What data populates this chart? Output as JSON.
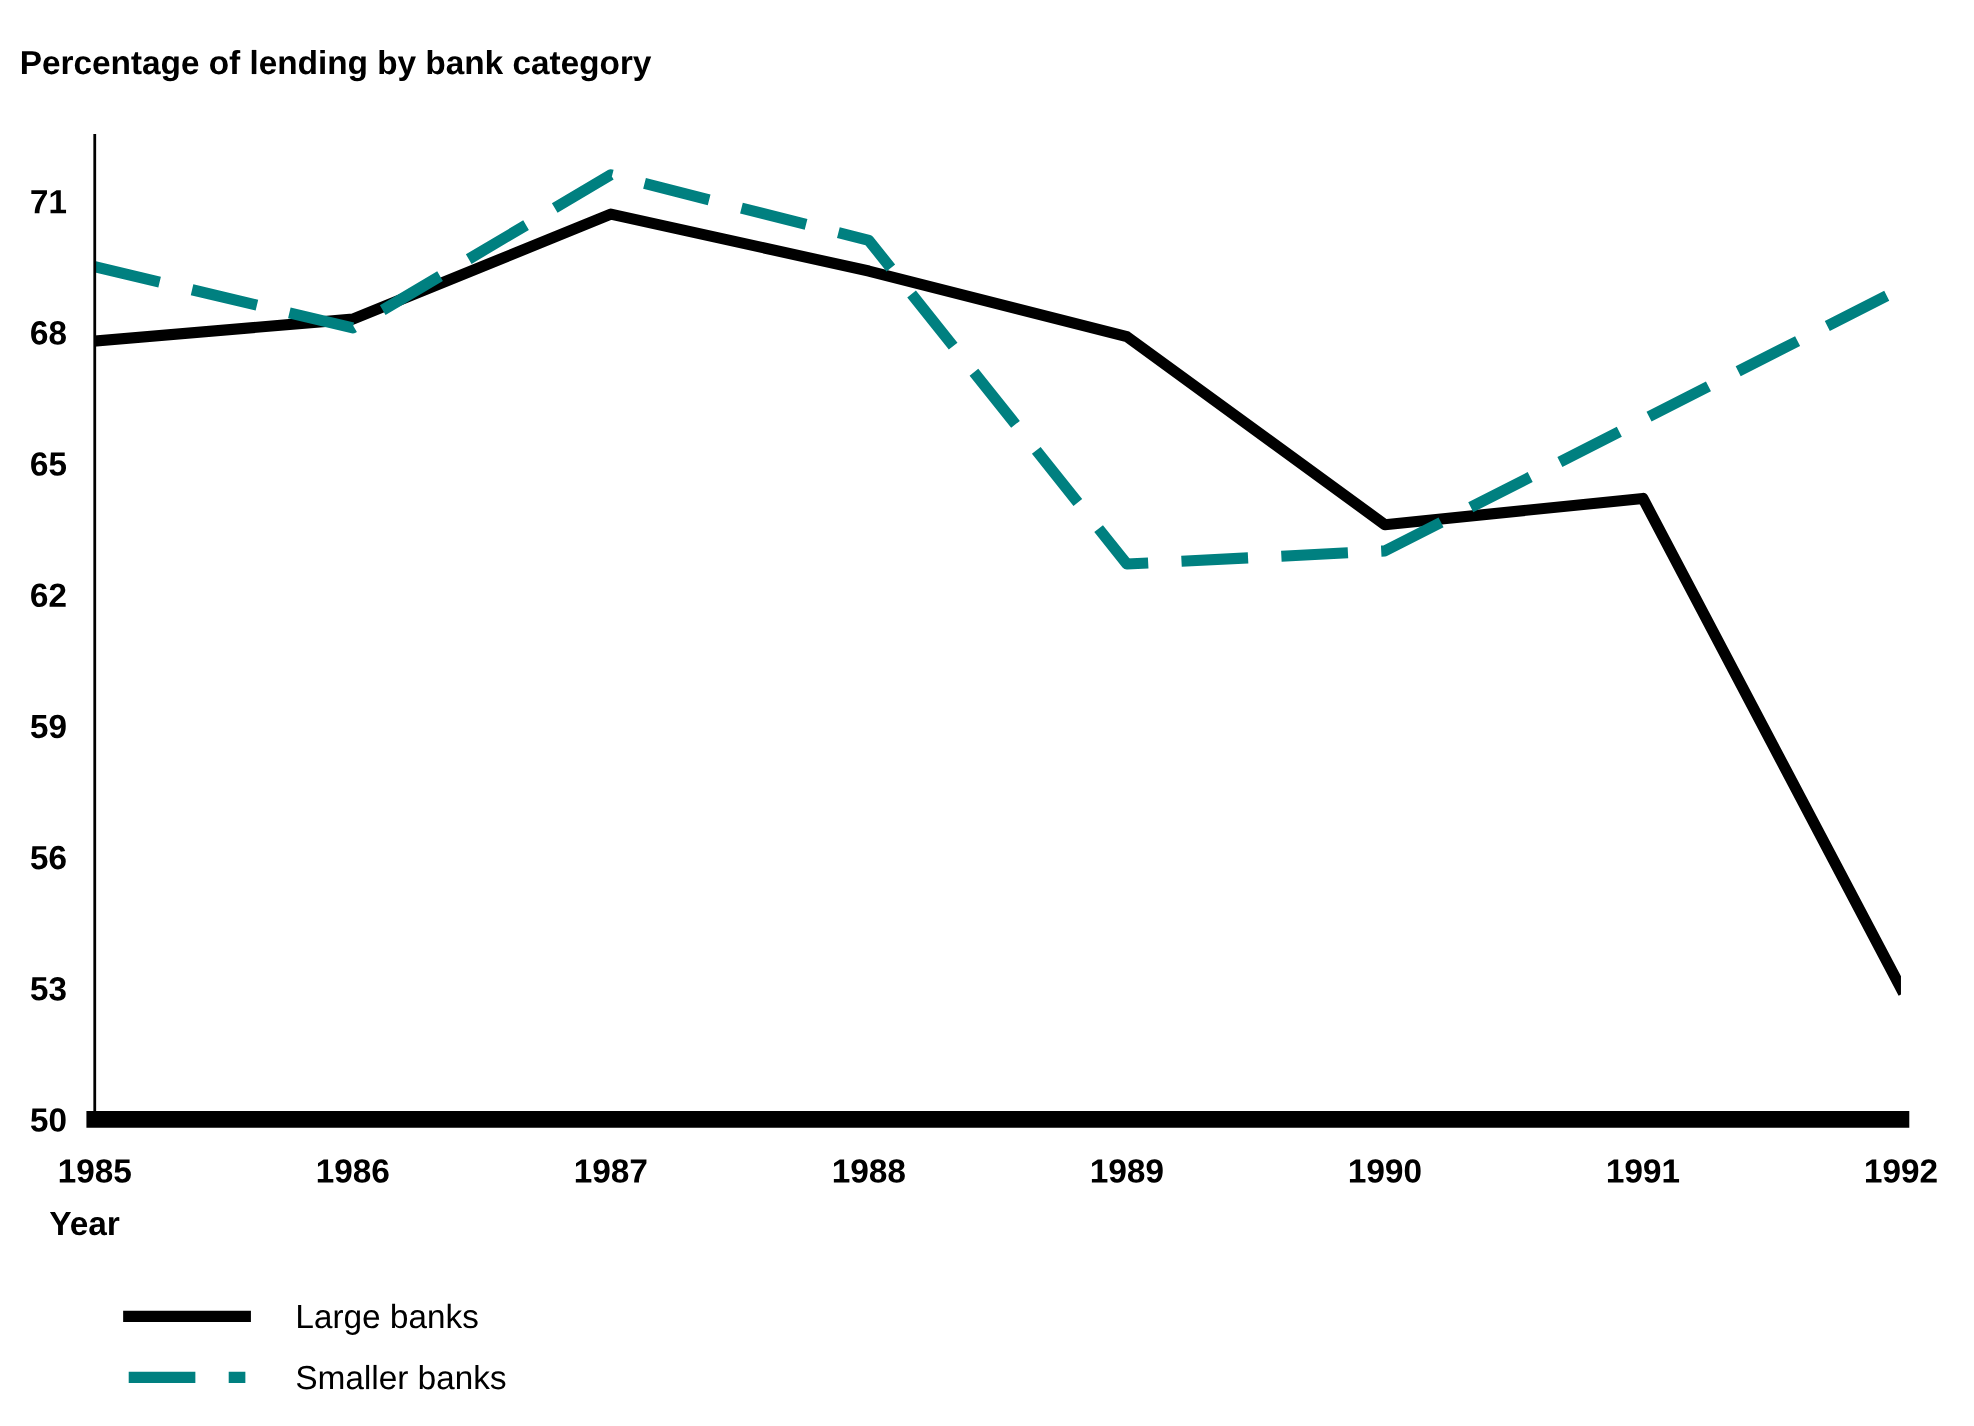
{
  "chart_data": {
    "type": "line",
    "title": "Percentage of lending by bank category",
    "xlabel": "Year",
    "categories": [
      "1985",
      "1986",
      "1987",
      "1988",
      "1989",
      "1990",
      "1991",
      "1992"
    ],
    "series": [
      {
        "name": "Large banks",
        "color": "#000000",
        "line_style": "solid",
        "values": [
          67.8,
          68.3,
          70.7,
          69.4,
          67.9,
          63.6,
          64.2,
          53.0
        ]
      },
      {
        "name": "Smaller banks",
        "color": "#008080",
        "line_style": "dashed",
        "values": [
          69.5,
          68.1,
          71.6,
          70.1,
          62.7,
          63.0,
          66.0,
          69.0
        ]
      }
    ],
    "ylim": [
      50,
      72.5
    ],
    "yticks": [
      50,
      53,
      56,
      59,
      62,
      65,
      68,
      71
    ],
    "grid": false,
    "legend": "bottom left",
    "marker": "none"
  }
}
